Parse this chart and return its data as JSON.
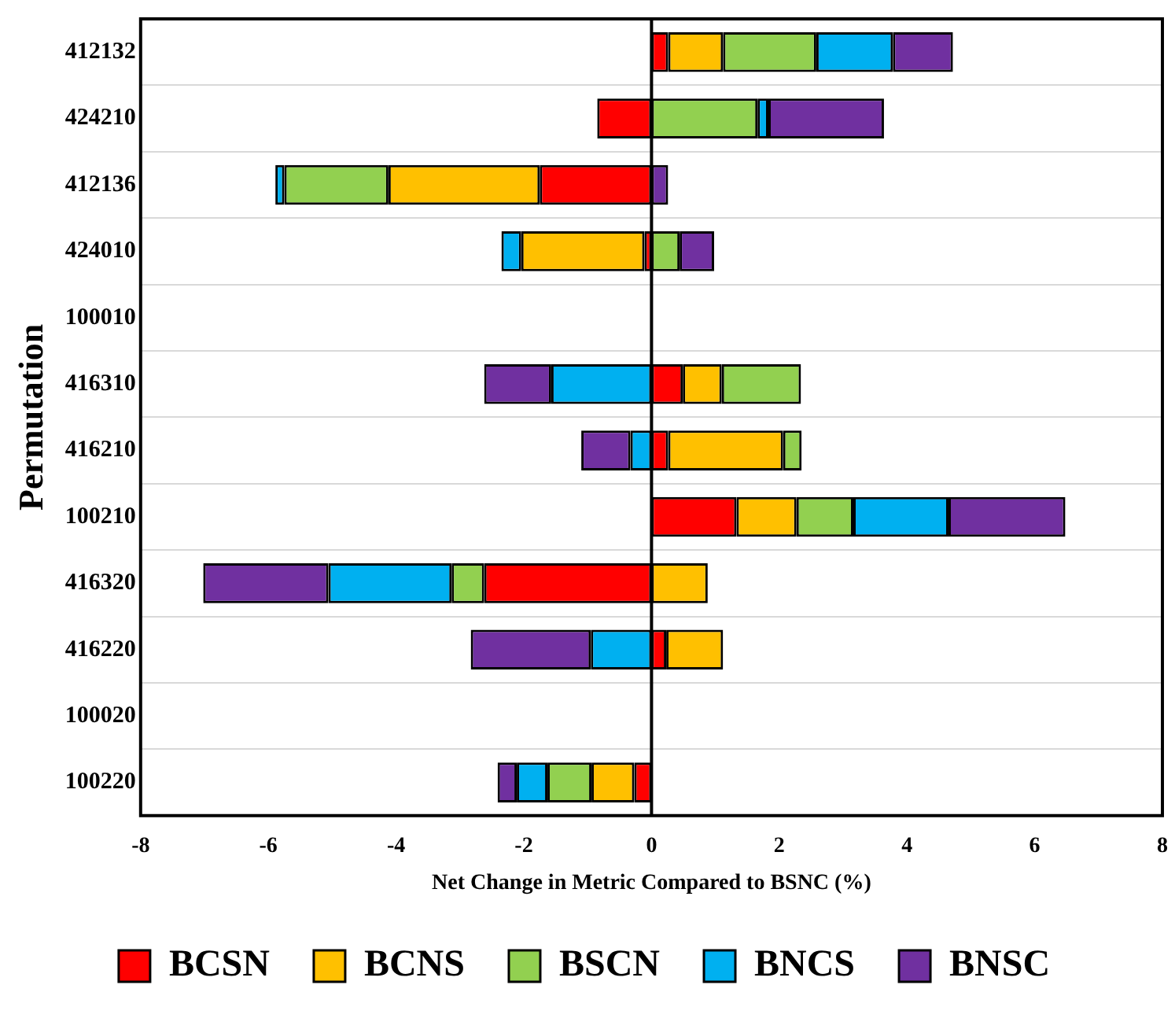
{
  "chart_data": {
    "type": "bar",
    "orientation": "horizontal",
    "stacked": true,
    "xlabel": "Net Change in Metric Compared to BSNC (%)",
    "ylabel": "Permutation",
    "categories": [
      "412132",
      "424210",
      "412136",
      "424010",
      "100010",
      "416310",
      "416210",
      "100210",
      "416320",
      "416220",
      "100020",
      "100220"
    ],
    "series": [
      {
        "name": "BCSN",
        "color": "#ff0000",
        "values": [
          0.26,
          -0.85,
          -1.75,
          -0.11,
          null,
          0.49,
          0.26,
          1.33,
          -2.62,
          0.23,
          null,
          -0.27
        ]
      },
      {
        "name": "BCNS",
        "color": "#ffc000",
        "values": [
          0.86,
          null,
          -2.37,
          -1.93,
          null,
          0.61,
          1.8,
          0.94,
          0.88,
          0.89,
          null,
          -0.67
        ]
      },
      {
        "name": "BSCN",
        "color": "#92d050",
        "values": [
          1.46,
          1.66,
          -1.63,
          0.44,
          null,
          1.24,
          0.29,
          0.89,
          -0.51,
          null,
          null,
          -0.69
        ]
      },
      {
        "name": "BNCS",
        "color": "#00b0f0",
        "values": [
          1.2,
          0.17,
          -0.14,
          -0.31,
          null,
          -1.57,
          -0.33,
          1.49,
          -1.93,
          -0.95,
          null,
          -0.48
        ]
      },
      {
        "name": "BNSC",
        "color": "#7030a0",
        "values": [
          0.94,
          1.81,
          0.26,
          0.54,
          null,
          -1.05,
          -0.77,
          1.83,
          -1.96,
          -1.88,
          null,
          -0.3
        ]
      }
    ],
    "xlim": [
      -8,
      8
    ],
    "xticks": [
      -8,
      -6,
      -4,
      -2,
      0,
      2,
      4,
      6,
      8
    ],
    "grid": "y",
    "legend": "bottom",
    "ref_lines": [
      {
        "axis": "x",
        "value": 0,
        "color": "#000000"
      }
    ]
  }
}
